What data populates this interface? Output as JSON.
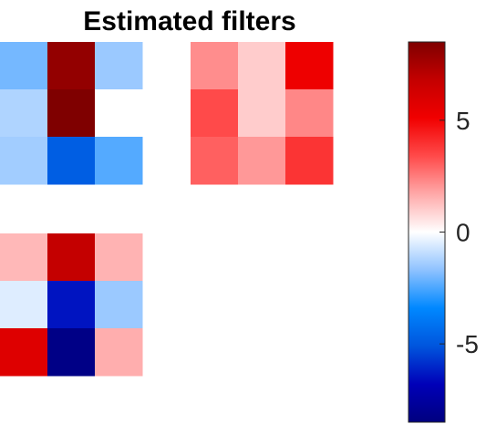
{
  "chart_data": {
    "type": "heatmap",
    "title": "Estimated filters",
    "colormap": {
      "min": -8.5,
      "max": 8.5,
      "stops": [
        "#00007f",
        "#0000b8",
        "#0055dd",
        "#0088ff",
        "#8ec2ff",
        "#ffffff",
        "#ffa9a9",
        "#ff4a4a",
        "#f10000",
        "#c40000",
        "#7f0000"
      ]
    },
    "colorbar": {
      "ticks": [
        5,
        0,
        -5
      ],
      "tick_labels": [
        "5",
        "0",
        "-5"
      ]
    },
    "filters": [
      {
        "id": "filter-1",
        "values": [
          [
            -2.0,
            8.0,
            -1.5
          ],
          [
            -1.2,
            8.5,
            0.0
          ],
          [
            -1.4,
            -4.8,
            -2.4
          ]
        ]
      },
      {
        "id": "filter-2",
        "values": [
          [
            2.2,
            1.0,
            5.2
          ],
          [
            3.4,
            1.0,
            2.3
          ],
          [
            3.0,
            2.0,
            3.9
          ]
        ]
      },
      {
        "id": "filter-3",
        "values": [
          [
            1.4,
            6.8,
            1.5
          ],
          [
            -0.5,
            -6.4,
            -1.5
          ],
          [
            5.8,
            -8.3,
            1.6
          ]
        ]
      }
    ]
  }
}
